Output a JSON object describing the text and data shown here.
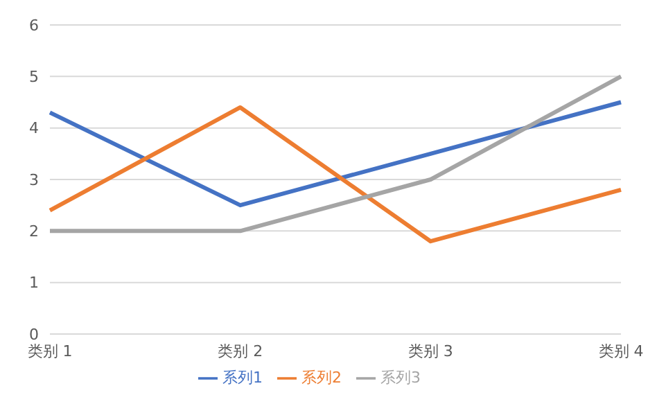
{
  "chart_data": {
    "type": "line",
    "categories": [
      "类别 1",
      "类别 2",
      "类别 3",
      "类别 4"
    ],
    "series": [
      {
        "name": "系列1",
        "color": "#4472c4",
        "values": [
          4.3,
          2.5,
          3.5,
          4.5
        ]
      },
      {
        "name": "系列2",
        "color": "#ed7d31",
        "values": [
          2.4,
          4.4,
          1.8,
          2.8
        ]
      },
      {
        "name": "系列3",
        "color": "#a5a5a5",
        "values": [
          2,
          2,
          3,
          5
        ]
      }
    ],
    "ylim": [
      0,
      6
    ],
    "yticks": [
      0,
      1,
      2,
      3,
      4,
      5,
      6
    ],
    "grid": "y",
    "legend": "bottom",
    "marker": "none",
    "line_style": "solid"
  }
}
